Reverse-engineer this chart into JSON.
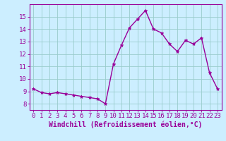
{
  "x": [
    0,
    1,
    2,
    3,
    4,
    5,
    6,
    7,
    8,
    9,
    10,
    11,
    12,
    13,
    14,
    15,
    16,
    17,
    18,
    19,
    20,
    21,
    22,
    23
  ],
  "y": [
    9.2,
    8.9,
    8.8,
    8.9,
    8.8,
    8.7,
    8.6,
    8.5,
    8.4,
    8.0,
    11.2,
    12.7,
    14.1,
    14.8,
    15.5,
    14.0,
    13.7,
    12.8,
    12.2,
    13.1,
    12.8,
    13.3,
    10.5,
    9.2
  ],
  "line_color": "#990099",
  "marker": "*",
  "marker_color": "#990099",
  "bg_color": "#cceeff",
  "grid_color": "#99cccc",
  "xlabel": "Windchill (Refroidissement éolien,°C)",
  "xlabel_color": "#990099",
  "tick_color": "#990099",
  "ylim": [
    7.5,
    16.0
  ],
  "xlim": [
    -0.5,
    23.5
  ],
  "yticks": [
    8,
    9,
    10,
    11,
    12,
    13,
    14,
    15
  ],
  "xticks": [
    0,
    1,
    2,
    3,
    4,
    5,
    6,
    7,
    8,
    9,
    10,
    11,
    12,
    13,
    14,
    15,
    16,
    17,
    18,
    19,
    20,
    21,
    22,
    23
  ],
  "spine_color": "#990099",
  "linewidth": 1.0,
  "markersize": 3.5,
  "tick_fontsize": 6.5,
  "xlabel_fontsize": 7.0
}
